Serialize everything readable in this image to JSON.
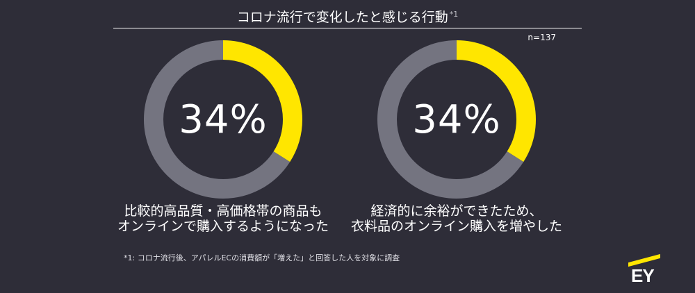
{
  "header": {
    "title": "コロナ流行で変化したと感じる行動",
    "title_note": "*1",
    "sample_size": "n=137"
  },
  "chart_data": [
    {
      "type": "pie",
      "style": "donut",
      "values": [
        34,
        66
      ],
      "value_label": "34%",
      "caption_line1": "比較的高品質・高価格帯の商品も",
      "caption_line2": "オンラインで購入するようになった",
      "colors": [
        "#ffe600",
        "#747480"
      ]
    },
    {
      "type": "pie",
      "style": "donut",
      "values": [
        34,
        66
      ],
      "value_label": "34%",
      "caption_line1": "経済的に余裕ができたため、",
      "caption_line2": "衣料品のオンライン購入を増やした",
      "colors": [
        "#ffe600",
        "#747480"
      ]
    }
  ],
  "footnote": "*1: コロナ流行後、アパレルECの消費額が「増えた」と回答した人を対象に調査",
  "logo": {
    "text": "EY",
    "accent_color": "#ffe600"
  }
}
